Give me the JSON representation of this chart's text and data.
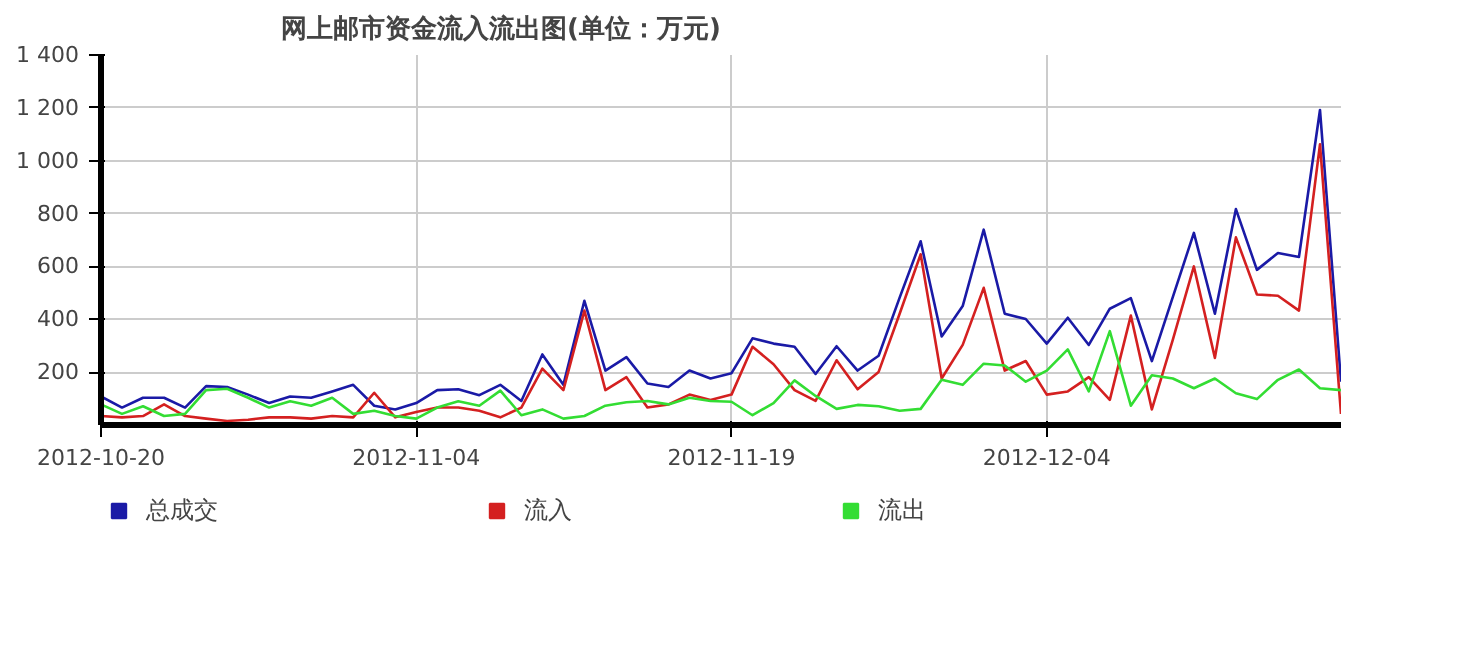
{
  "chart_data": {
    "type": "line",
    "title": "网上邮市资金流入流出图(单位：万元)",
    "x": [
      "2012-10-20",
      "2012-10-21",
      "2012-10-22",
      "2012-10-23",
      "2012-10-24",
      "2012-10-25",
      "2012-10-26",
      "2012-10-27",
      "2012-10-28",
      "2012-10-29",
      "2012-10-30",
      "2012-10-31",
      "2012-11-01",
      "2012-11-02",
      "2012-11-03",
      "2012-11-04",
      "2012-11-05",
      "2012-11-06",
      "2012-11-07",
      "2012-11-08",
      "2012-11-09",
      "2012-11-10",
      "2012-11-11",
      "2012-11-12",
      "2012-11-13",
      "2012-11-14",
      "2012-11-15",
      "2012-11-16",
      "2012-11-17",
      "2012-11-18",
      "2012-11-19",
      "2012-11-20",
      "2012-11-21",
      "2012-11-22",
      "2012-11-23",
      "2012-11-24",
      "2012-11-25",
      "2012-11-26",
      "2012-11-27",
      "2012-11-28",
      "2012-11-29",
      "2012-11-30",
      "2012-12-01",
      "2012-12-02",
      "2012-12-03",
      "2012-12-04",
      "2012-12-05",
      "2012-12-06",
      "2012-12-07",
      "2012-12-08",
      "2012-12-09",
      "2012-12-10",
      "2012-12-11",
      "2012-12-12",
      "2012-12-13",
      "2012-12-14",
      "2012-12-15",
      "2012-12-16",
      "2012-12-17",
      "2012-12-18"
    ],
    "series": [
      {
        "name": "总成交",
        "color": "#1a1aa6",
        "values": [
          108,
          66,
          103,
          103,
          66,
          147,
          144,
          115,
          83,
          108,
          103,
          127,
          152,
          73,
          59,
          83,
          132,
          135,
          113,
          152,
          91,
          267,
          152,
          470,
          206,
          257,
          157,
          144,
          206,
          176,
          196,
          328,
          308,
          296,
          193,
          298,
          206,
          262,
          482,
          695,
          335,
          450,
          739,
          421,
          401,
          308,
          406,
          303,
          440,
          480,
          242,
          485,
          727,
          421,
          817,
          587,
          651,
          636,
          1192,
          164
        ]
      },
      {
        "name": "流入",
        "color": "#d42020",
        "values": [
          34,
          29,
          34,
          78,
          34,
          24,
          15,
          20,
          29,
          29,
          24,
          34,
          29,
          122,
          29,
          49,
          66,
          66,
          54,
          29,
          66,
          213,
          132,
          433,
          132,
          181,
          66,
          78,
          115,
          95,
          115,
          296,
          230,
          132,
          91,
          245,
          135,
          201,
          421,
          646,
          176,
          303,
          519,
          206,
          242,
          115,
          127,
          181,
          95,
          414,
          59,
          323,
          600,
          254,
          710,
          494,
          489,
          433,
          1062,
          42
        ]
      },
      {
        "name": "流出",
        "color": "#33dd33",
        "values": [
          78,
          42,
          71,
          34,
          42,
          132,
          137,
          103,
          66,
          90,
          73,
          103,
          42,
          54,
          34,
          24,
          66,
          90,
          73,
          130,
          37,
          59,
          24,
          34,
          73,
          86,
          91,
          78,
          103,
          91,
          88,
          37,
          83,
          169,
          110,
          61,
          76,
          71,
          54,
          61,
          171,
          152,
          232,
          225,
          164,
          206,
          286,
          127,
          355,
          73,
          188,
          176,
          139,
          176,
          120,
          98,
          171,
          210,
          139,
          132
        ]
      }
    ],
    "xlim": [
      "2012-10-20",
      "2012-12-18"
    ],
    "xticks": [
      "2012-10-20",
      "2012-11-04",
      "2012-11-19",
      "2012-12-04"
    ],
    "ylim": [
      0,
      1400
    ],
    "yticks": [
      {
        "value": 200,
        "label": "200"
      },
      {
        "value": 400,
        "label": "400"
      },
      {
        "value": 600,
        "label": "600"
      },
      {
        "value": 800,
        "label": "800"
      },
      {
        "value": 1000,
        "label": "1 000"
      },
      {
        "value": 1200,
        "label": "1 200"
      },
      {
        "value": 1400,
        "label": "1 400"
      }
    ],
    "grid": true,
    "legend": "bottom",
    "marker": "none",
    "line_style": "solid"
  }
}
